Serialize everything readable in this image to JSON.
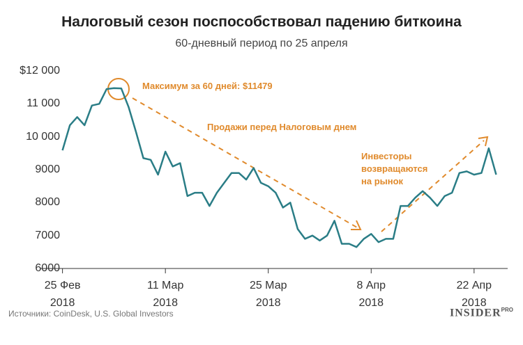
{
  "chart_data": {
    "type": "line",
    "title": "Налоговый сезон поспособствовал падению биткоина",
    "subtitle": "60-дневный период по 25 апреля",
    "x": [
      "2018-02-25",
      "2018-02-26",
      "2018-02-27",
      "2018-02-28",
      "2018-03-01",
      "2018-03-02",
      "2018-03-03",
      "2018-03-04",
      "2018-03-05",
      "2018-03-06",
      "2018-03-07",
      "2018-03-08",
      "2018-03-09",
      "2018-03-10",
      "2018-03-11",
      "2018-03-12",
      "2018-03-13",
      "2018-03-14",
      "2018-03-15",
      "2018-03-16",
      "2018-03-17",
      "2018-03-18",
      "2018-03-19",
      "2018-03-20",
      "2018-03-21",
      "2018-03-22",
      "2018-03-23",
      "2018-03-24",
      "2018-03-25",
      "2018-03-26",
      "2018-03-27",
      "2018-03-28",
      "2018-03-29",
      "2018-03-30",
      "2018-03-31",
      "2018-04-01",
      "2018-04-02",
      "2018-04-03",
      "2018-04-04",
      "2018-04-05",
      "2018-04-06",
      "2018-04-07",
      "2018-04-08",
      "2018-04-09",
      "2018-04-10",
      "2018-04-11",
      "2018-04-12",
      "2018-04-13",
      "2018-04-14",
      "2018-04-15",
      "2018-04-16",
      "2018-04-17",
      "2018-04-18",
      "2018-04-19",
      "2018-04-20",
      "2018-04-21",
      "2018-04-22",
      "2018-04-23",
      "2018-04-24",
      "2018-04-25"
    ],
    "values": [
      9590,
      10350,
      10600,
      10350,
      10950,
      11000,
      11450,
      11479,
      11470,
      10900,
      10150,
      9350,
      9300,
      8850,
      9550,
      9100,
      9200,
      8200,
      8300,
      8300,
      7900,
      8300,
      8600,
      8900,
      8900,
      8700,
      9050,
      8600,
      8500,
      8300,
      7850,
      8000,
      7200,
      6900,
      7000,
      6850,
      7000,
      7450,
      6750,
      6750,
      6650,
      6900,
      7050,
      6800,
      6900,
      6900,
      7900,
      7900,
      8150,
      8350,
      8150,
      7900,
      8200,
      8300,
      8900,
      8950,
      8850,
      8900,
      9650,
      8850
    ],
    "color": "#2a7d86",
    "xlim": [
      "2018-02-22",
      "2018-04-26"
    ],
    "xticks": [
      {
        "value": "2018-02-25",
        "label": "25 Фев\n2018"
      },
      {
        "value": "2018-03-11",
        "label": "11 Мар\n2018"
      },
      {
        "value": "2018-03-25",
        "label": "25 Мар\n2018"
      },
      {
        "value": "2018-04-08",
        "label": "8 Апр\n2018"
      },
      {
        "value": "2018-04-22",
        "label": "22 Апр\n2018"
      }
    ],
    "ylim": [
      6000,
      12000
    ],
    "yticks": [
      {
        "value": 12000,
        "label": "$12 000"
      },
      {
        "value": 11000,
        "label": "11 000"
      },
      {
        "value": 10000,
        "label": "10 000"
      },
      9000,
      8000,
      7000,
      6000
    ],
    "grid": false,
    "annotations": [
      "Максимум за 60 дней: $11479",
      "Продажи перед Налоговым днем",
      "Инвесторы\nвозвращаются\nна рынок"
    ],
    "source": "Источники: CoinDesk, U.S. Global Investors",
    "logo": "INSIDER",
    "logo_suffix": "PRO"
  }
}
